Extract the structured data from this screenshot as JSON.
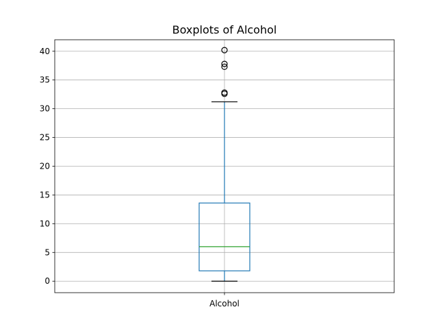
{
  "chart_data": {
    "type": "box",
    "title": "Boxplots of Alcohol",
    "xlabel": "",
    "ylabel": "",
    "categories": [
      "Alcohol"
    ],
    "ylim": [
      -2,
      42
    ],
    "yticks": [
      0,
      5,
      10,
      15,
      20,
      25,
      30,
      35,
      40
    ],
    "grid": true,
    "boxes": [
      {
        "name": "Alcohol",
        "whisker_low": 0.0,
        "q1": 1.8,
        "median": 6.0,
        "q3": 13.6,
        "whisker_high": 31.2,
        "outliers": [
          32.6,
          32.8,
          37.3,
          37.8,
          40.2
        ]
      }
    ],
    "colors": {
      "box": "#1f77b4",
      "median": "#2ca02c",
      "whisker_cap": "#000000",
      "outlier": "#000000"
    }
  }
}
